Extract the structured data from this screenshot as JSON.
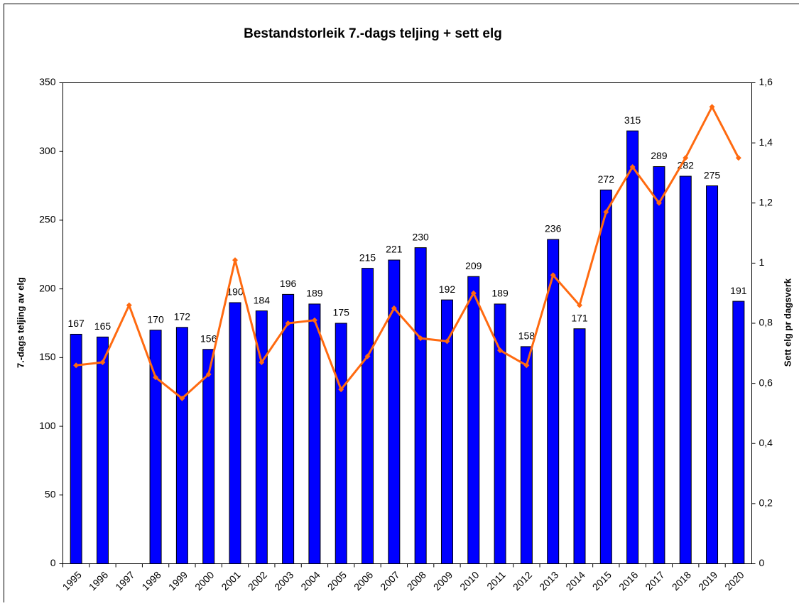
{
  "chart_data": {
    "type": "bar",
    "title": "Bestandstorleik 7.-dags teljing + sett elg",
    "ylabel": "7.-dags teljing av elg",
    "y2label": "Sett elg pr dagsverk",
    "categories": [
      "1995",
      "1996",
      "1997",
      "1998",
      "1999",
      "2000",
      "2001",
      "2002",
      "2003",
      "2004",
      "2005",
      "2006",
      "2007",
      "2008",
      "2009",
      "2010",
      "2011",
      "2012",
      "2013",
      "2014",
      "2015",
      "2016",
      "2017",
      "2018",
      "2019",
      "2020"
    ],
    "series": [
      {
        "type": "bar",
        "color": "#0000ff",
        "values": [
          167,
          165,
          null,
          170,
          172,
          156,
          190,
          184,
          196,
          189,
          175,
          215,
          221,
          230,
          192,
          209,
          189,
          158,
          236,
          171,
          272,
          315,
          289,
          282,
          275,
          191
        ]
      },
      {
        "type": "line",
        "axis": "y2",
        "color": "#ff6a10",
        "values": [
          0.66,
          0.67,
          0.86,
          0.62,
          0.55,
          0.63,
          1.01,
          0.67,
          0.8,
          0.81,
          0.58,
          0.69,
          0.85,
          0.75,
          0.74,
          0.9,
          0.71,
          0.66,
          0.96,
          0.86,
          1.17,
          1.32,
          1.2,
          1.35,
          1.52,
          1.35
        ]
      }
    ],
    "ylim": [
      0,
      350
    ],
    "yticks": [
      0,
      50,
      100,
      150,
      200,
      250,
      300,
      350
    ],
    "y2lim": [
      0,
      1.6
    ],
    "y2ticks": [
      0,
      {
        "value": 0.2,
        "label": "0,2"
      },
      {
        "value": 0.4,
        "label": "0,4"
      },
      {
        "value": 0.6,
        "label": "0,6"
      },
      {
        "value": 0.8,
        "label": "0,8"
      },
      1,
      {
        "value": 1.2,
        "label": "1,2"
      },
      {
        "value": 1.4,
        "label": "1,4"
      },
      {
        "value": 1.6,
        "label": "1,6"
      }
    ]
  }
}
